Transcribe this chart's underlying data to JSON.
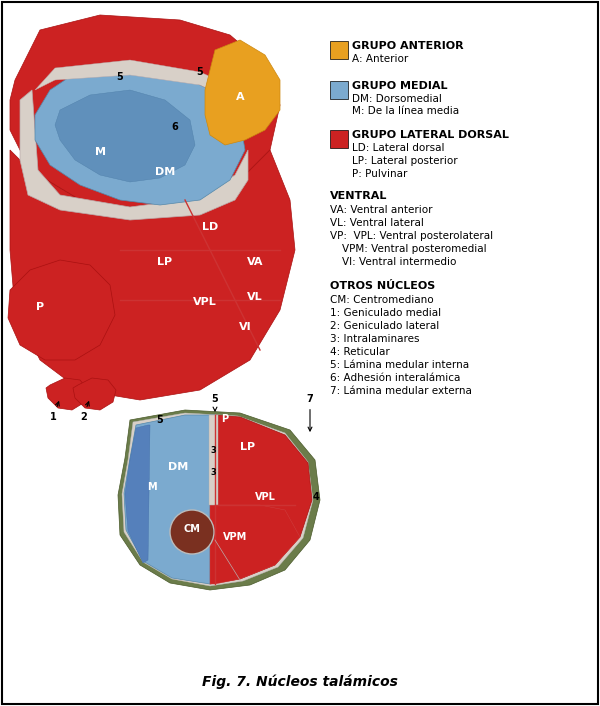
{
  "title": "Fig. 7. Núcleos talámicos",
  "background_color": "#ffffff",
  "border_color": "#000000",
  "legend": {
    "grupo_anterior": {
      "color": "#e8a020",
      "title": "GRUPO ANTERIOR",
      "items": [
        "A: Anterior"
      ]
    },
    "grupo_medial": {
      "color": "#7baacf",
      "title": "GRUPO MEDIAL",
      "items": [
        "DM: Dorsomedial",
        "M: De la línea media"
      ]
    },
    "grupo_lateral_dorsal": {
      "color": "#d42020",
      "title": "GRUPO LATERAL DORSAL",
      "items": [
        "LD: Lateral dorsal",
        "LP: Lateral posterior",
        "P: Pulvinar"
      ]
    },
    "ventral": {
      "title": "VENTRAL",
      "items": [
        "VA: Ventral anterior",
        "VL: Ventral lateral",
        "VP:  VPL: Ventral posterolateral",
        "      VPM: Ventral posteromedial",
        "      VI: Ventral intermedio"
      ]
    },
    "otros_nucleos": {
      "title": "OTROS NÚCLEOS",
      "items": [
        "CM: Centromediano",
        "1: Geniculado medial",
        "2: Geniculado lateral",
        "3: Intralaminares",
        "4: Reticular",
        "5: Lámina medular interna",
        "6: Adhesión interalámica",
        "7: Lámina medular externa"
      ]
    }
  },
  "colors": {
    "red": "#cc2222",
    "blue": "#7baacf",
    "orange": "#e8a020",
    "dark_red": "#8b2010",
    "green": "#6b7c4a",
    "light_gray": "#d8d0c8",
    "white": "#ffffff",
    "black": "#000000"
  }
}
